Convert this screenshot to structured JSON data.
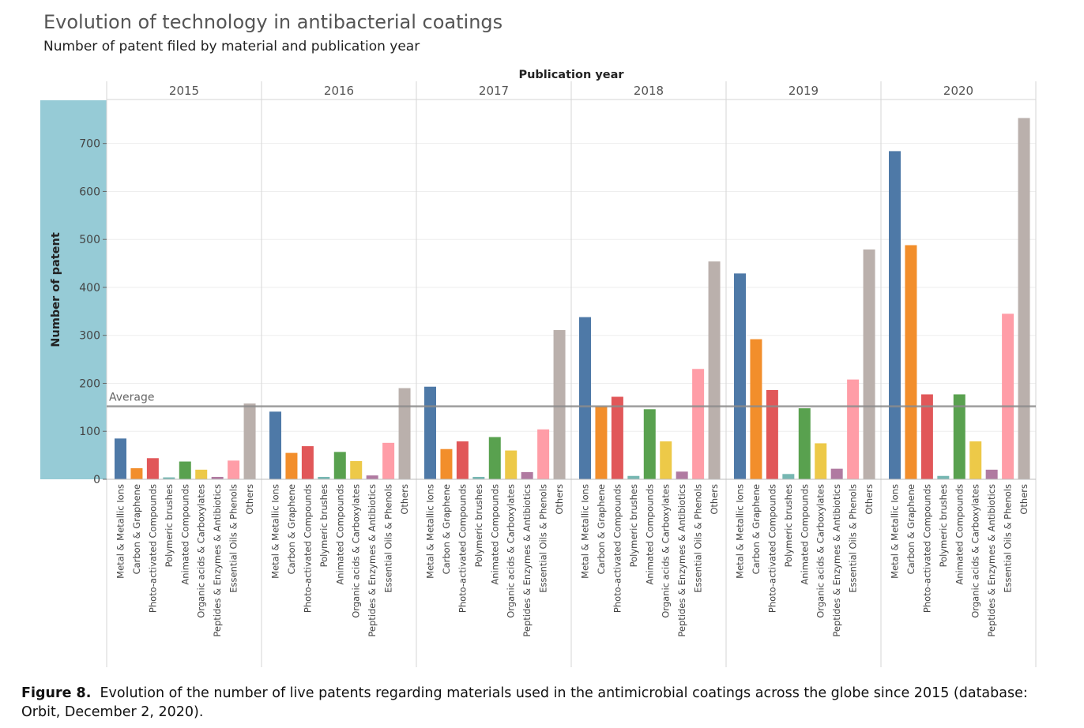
{
  "colors": {
    "Metal & Metallic Ions": "#4e79a7",
    "Carbon & Graphene": "#f28e2b",
    "Photo-activated Compounds": "#e15759",
    "Polymeric brushes": "#76b7b2",
    "Animated Compounds": "#59a14f",
    "Organic acids & Carboxylates": "#edc948",
    "Peptides & Enzymes & Antibiotics": "#b07aa1",
    "Essential Oils & Phenols": "#ff9da7",
    "Others": "#bab0ac",
    "axis_highlight": "#96cbd6",
    "average_line": "#8c8c8c"
  },
  "caption": {
    "label": "Figure 8.",
    "text": "Evolution of the number of live patents regarding materials used in the antimicrobial coatings across the globe since 2015 (database: Orbit, December 2, 2020)."
  },
  "chart_data": {
    "type": "bar",
    "title": "Evolution of technology in antibacterial coatings",
    "subtitle": "Number of patent filed by material and publication year",
    "column_header": "Publication year",
    "ylabel": "Number of patent",
    "ylim": [
      0,
      790
    ],
    "yticks": [
      0,
      100,
      200,
      300,
      400,
      500,
      600,
      700
    ],
    "grid": true,
    "legend": "none",
    "groups": [
      "2015",
      "2016",
      "2017",
      "2018",
      "2019",
      "2020"
    ],
    "categories": [
      "Metal & Metallic Ions",
      "Carbon & Graphene",
      "Photo-activated Compounds",
      "Polymeric brushes",
      "Animated Compounds",
      "Organic acids & Carboxylates",
      "Peptides & Enzymes & Antibiotics",
      "Essential Oils & Phenols",
      "Others"
    ],
    "series": [
      {
        "group": "2015",
        "values": [
          85,
          23,
          44,
          4,
          37,
          20,
          5,
          39,
          158
        ]
      },
      {
        "group": "2016",
        "values": [
          141,
          55,
          69,
          5,
          57,
          38,
          8,
          76,
          190
        ]
      },
      {
        "group": "2017",
        "values": [
          193,
          63,
          79,
          5,
          88,
          60,
          15,
          104,
          311
        ]
      },
      {
        "group": "2018",
        "values": [
          338,
          152,
          172,
          7,
          146,
          79,
          16,
          230,
          454
        ]
      },
      {
        "group": "2019",
        "values": [
          429,
          292,
          186,
          11,
          148,
          75,
          22,
          208,
          479
        ]
      },
      {
        "group": "2020",
        "values": [
          684,
          488,
          177,
          7,
          177,
          79,
          20,
          345,
          753
        ]
      }
    ],
    "reference_line": {
      "label": "Average",
      "value": 152
    }
  }
}
